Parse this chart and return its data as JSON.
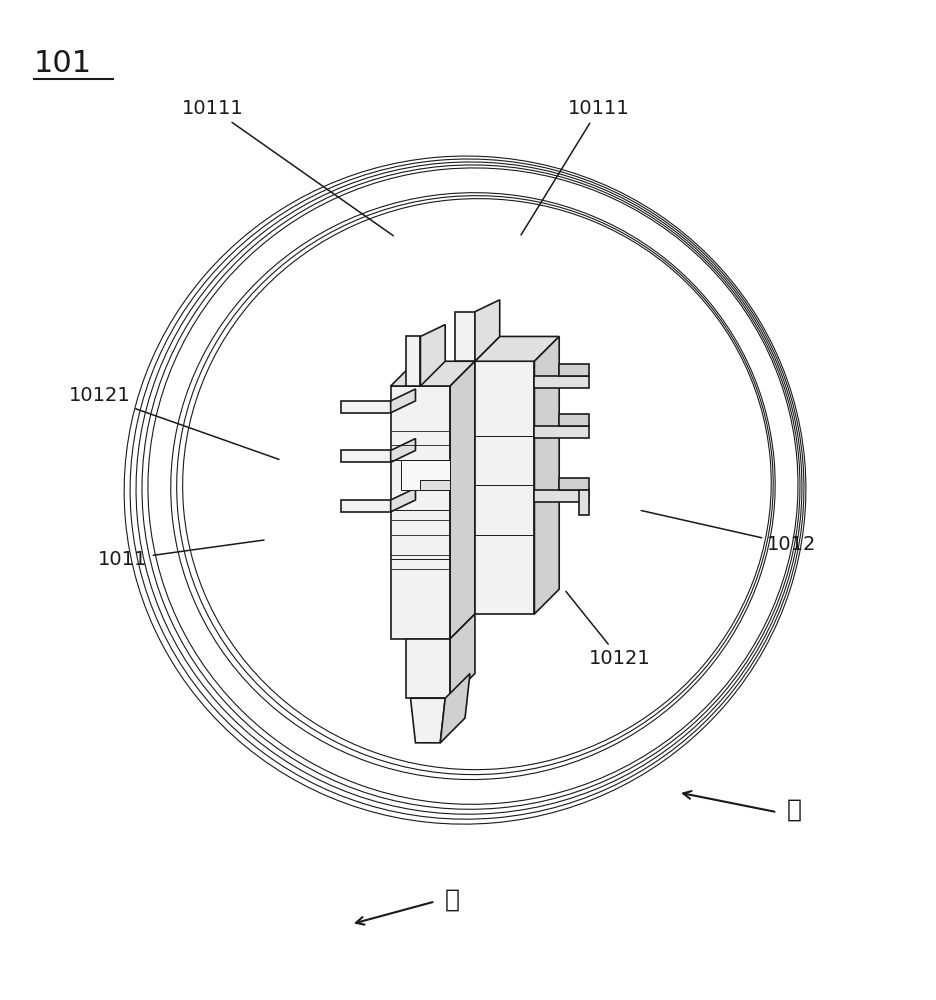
{
  "bg_color": "#ffffff",
  "line_color": "#1a1a1a",
  "label_color": "#000000",
  "font_size_labels": 14,
  "font_size_direction": 18,
  "font_size_title": 22,
  "direction_hou_text": "后",
  "direction_qian_text": "前"
}
